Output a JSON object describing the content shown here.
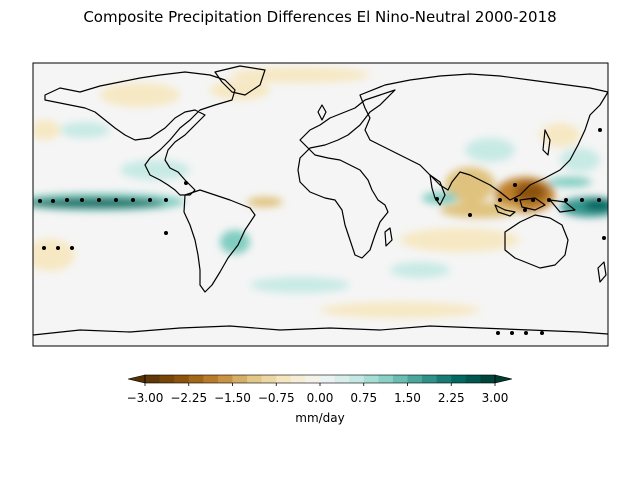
{
  "title": "Composite Precipitation Differences El Nino-Neutral 2000-2018",
  "colorbar": {
    "label": "mm/day",
    "ticks": [
      "−3.00",
      "−2.25",
      "−1.50",
      "−0.75",
      "0.00",
      "0.75",
      "1.50",
      "2.25",
      "3.00"
    ],
    "tick_values": [
      -3.0,
      -2.25,
      -1.5,
      -0.75,
      0.0,
      0.75,
      1.5,
      2.25,
      3.0
    ],
    "range": [
      -3.0,
      3.0
    ],
    "extend": "both",
    "colormap": "BrBG",
    "colors": [
      "#543005",
      "#8c510a",
      "#bf812d",
      "#dfc27d",
      "#f6e8c3",
      "#f5f5f5",
      "#c7eae5",
      "#80cdc1",
      "#35978f",
      "#01665e",
      "#003c30"
    ]
  },
  "map": {
    "projection": "PlateCarree",
    "coastlines": true,
    "features": [
      {
        "region": "central-equatorial-pacific",
        "lon": [
          -180,
          -100
        ],
        "lat": [
          0,
          5
        ],
        "value": 3.0
      },
      {
        "region": "western-pacific-south",
        "lon": [
          140,
          180
        ],
        "lat": [
          -4,
          3
        ],
        "value": 2.5
      },
      {
        "region": "maritime-continent",
        "lon": [
          100,
          150
        ],
        "lat": [
          -5,
          15
        ],
        "value": -2.5
      },
      {
        "region": "north-tropical-atlantic",
        "lon": [
          -45,
          -20
        ],
        "lat": [
          1,
          5
        ],
        "value": -1.0
      },
      {
        "region": "south-pacific-convergence",
        "lon": [
          -180,
          -140
        ],
        "lat": [
          -20,
          -5
        ],
        "value": -0.8
      },
      {
        "region": "northwest-pacific",
        "lon": [
          140,
          180
        ],
        "lat": [
          15,
          25
        ],
        "value": 1.2
      },
      {
        "region": "indian-ocean-east",
        "lon": [
          80,
          110
        ],
        "lat": [
          -12,
          -2
        ],
        "value": -1.0
      },
      {
        "region": "north-america-southwest",
        "lon": [
          -120,
          -95
        ],
        "lat": [
          25,
          40
        ],
        "value": 0.6
      },
      {
        "region": "south-america-south",
        "lon": [
          -60,
          -45
        ],
        "lat": [
          -35,
          -20
        ],
        "value": 1.0
      }
    ]
  }
}
